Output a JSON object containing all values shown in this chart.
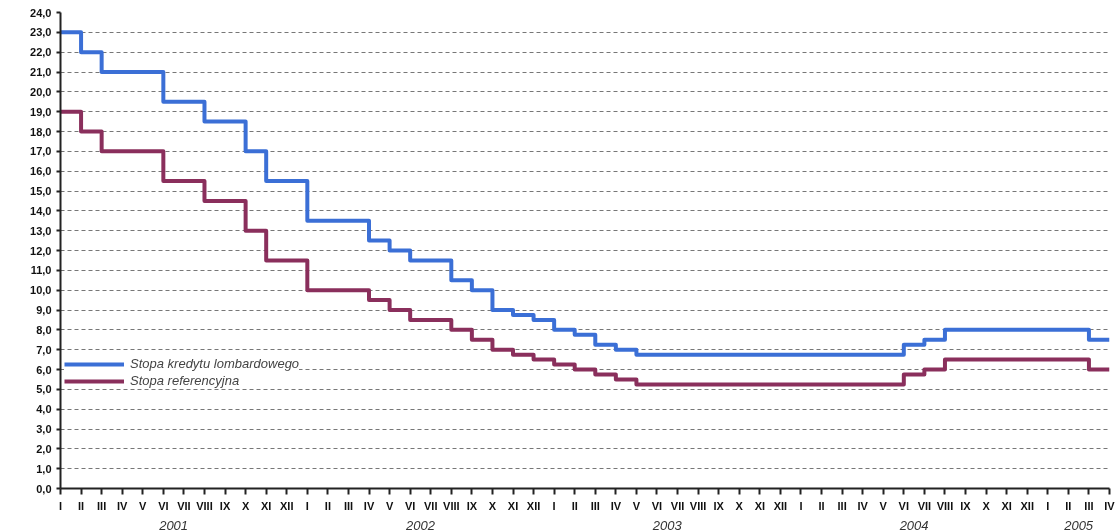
{
  "chart_data": {
    "type": "step",
    "categories": [
      "I",
      "II",
      "III",
      "IV",
      "V",
      "VI",
      "VII",
      "VIII",
      "IX",
      "X",
      "XI",
      "XII",
      "I",
      "II",
      "III",
      "IV",
      "V",
      "VI",
      "VII",
      "VIII",
      "IX",
      "X",
      "XI",
      "XII",
      "I",
      "II",
      "III",
      "IV",
      "V",
      "VI",
      "VII",
      "VIII",
      "IX",
      "X",
      "XI",
      "XII",
      "I",
      "II",
      "III",
      "IV",
      "V",
      "VI",
      "VII",
      "VIII",
      "IX",
      "X",
      "XI",
      "XII",
      "I",
      "II",
      "III",
      "IV"
    ],
    "series": [
      {
        "name": "Stopa kredytu lombardowego",
        "color": "#3b6fd6",
        "values": [
          23,
          22,
          21,
          21,
          21,
          19.5,
          19.5,
          18.5,
          18.5,
          17,
          15.5,
          15.5,
          13.5,
          13.5,
          13.5,
          12.5,
          12,
          11.5,
          11.5,
          10.5,
          10,
          9,
          8.75,
          8.5,
          8,
          7.75,
          7.25,
          7,
          6.75,
          6.75,
          6.75,
          6.75,
          6.75,
          6.75,
          6.75,
          6.75,
          6.75,
          6.75,
          6.75,
          6.75,
          6.75,
          7.25,
          7.5,
          8,
          8,
          8,
          8,
          8,
          8,
          8,
          7.5,
          7.5
        ]
      },
      {
        "name": "Stopa referencyjna",
        "color": "#8a2f5c",
        "values": [
          19,
          18,
          17,
          17,
          17,
          15.5,
          15.5,
          14.5,
          14.5,
          13,
          11.5,
          11.5,
          10,
          10,
          10,
          9.5,
          9,
          8.5,
          8.5,
          8,
          7.5,
          7,
          6.75,
          6.5,
          6.25,
          6,
          5.75,
          5.5,
          5.25,
          5.25,
          5.25,
          5.25,
          5.25,
          5.25,
          5.25,
          5.25,
          5.25,
          5.25,
          5.25,
          5.25,
          5.25,
          5.75,
          6,
          6.5,
          6.5,
          6.5,
          6.5,
          6.5,
          6.5,
          6.5,
          6,
          6
        ]
      }
    ],
    "annotations": [
      "2001",
      "2002",
      "2003",
      "2004",
      "2005"
    ],
    "ylim": [
      0,
      24
    ],
    "yticks": [
      {
        "value": 0,
        "label": "0,0"
      },
      {
        "value": 1,
        "label": "1,0"
      },
      {
        "value": 2,
        "label": "2,0"
      },
      {
        "value": 3,
        "label": "3,0"
      },
      {
        "value": 4,
        "label": "4,0"
      },
      {
        "value": 5,
        "label": "5,0"
      },
      {
        "value": 6,
        "label": "6,0"
      },
      {
        "value": 7,
        "label": "7,0"
      },
      {
        "value": 8,
        "label": "8,0"
      },
      {
        "value": 9,
        "label": "9,0"
      },
      {
        "value": 10,
        "label": "10,0"
      },
      {
        "value": 11,
        "label": "11,0"
      },
      {
        "value": 12,
        "label": "12,0"
      },
      {
        "value": 13,
        "label": "13,0"
      },
      {
        "value": 14,
        "label": "14,0"
      },
      {
        "value": 15,
        "label": "15,0"
      },
      {
        "value": 16,
        "label": "16,0"
      },
      {
        "value": 17,
        "label": "17,0"
      },
      {
        "value": 18,
        "label": "18,0"
      },
      {
        "value": 19,
        "label": "19,0"
      },
      {
        "value": 20,
        "label": "20,0"
      },
      {
        "value": 21,
        "label": "21,0"
      },
      {
        "value": 22,
        "label": "22,0"
      },
      {
        "value": 23,
        "label": "23,0"
      },
      {
        "value": 24,
        "label": "24,0"
      }
    ],
    "grid": "y",
    "legend": "left",
    "line_style": "solid",
    "marker": "none"
  }
}
